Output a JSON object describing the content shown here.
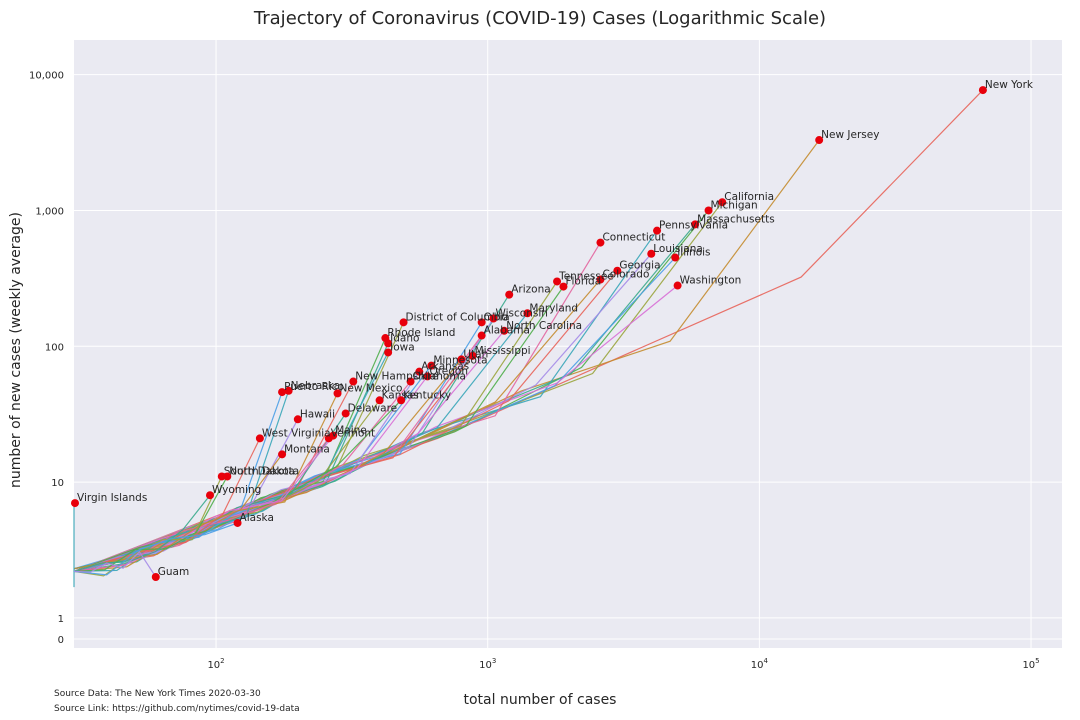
{
  "title": "Trajectory of Coronavirus (COVID-19) Cases (Logarithmic Scale)",
  "source_data": "Source Data: The New York Times 2020-03-30",
  "source_link": "Source Link: https://github.com/nytimes/covid-19-data",
  "chart_data": {
    "type": "line",
    "title": "Trajectory of Coronavirus (COVID-19) Cases (Logarithmic Scale)",
    "xlabel": "total number of cases",
    "ylabel": "number of new cases (weekly average)",
    "x_scale": "log",
    "y_scale": "log",
    "xlim": [
      30,
      130000
    ],
    "ylim": [
      0.6,
      18000
    ],
    "x_ticks": [
      {
        "value": 100,
        "label": "10",
        "exp": "2"
      },
      {
        "value": 1000,
        "label": "10",
        "exp": "3"
      },
      {
        "value": 10000,
        "label": "10",
        "exp": "4"
      },
      {
        "value": 100000,
        "label": "10",
        "exp": "5"
      }
    ],
    "y_ticks": [
      {
        "value": 1,
        "label": "1"
      },
      {
        "value": 10,
        "label": "10"
      },
      {
        "value": 100,
        "label": "100"
      },
      {
        "value": 1000,
        "label": "1,000"
      },
      {
        "value": 10000,
        "label": "10,000"
      }
    ],
    "y_zero_label": "0",
    "grid": true,
    "background": "#eaeaf2",
    "marker_color": "#e8000b",
    "palette": [
      "#e8645a",
      "#c48c2f",
      "#9aa53d",
      "#4fae4a",
      "#3aaa8c",
      "#39a6b8",
      "#4a9ee6",
      "#a58be8",
      "#d86fd6",
      "#e3659e"
    ],
    "points": [
      {
        "name": "New York",
        "x": 66500,
        "y": 7700
      },
      {
        "name": "New Jersey",
        "x": 16600,
        "y": 3300
      },
      {
        "name": "California",
        "x": 7300,
        "y": 1150
      },
      {
        "name": "Michigan",
        "x": 6500,
        "y": 1000
      },
      {
        "name": "Massachusetts",
        "x": 5800,
        "y": 790
      },
      {
        "name": "Pennsylvania",
        "x": 4200,
        "y": 710
      },
      {
        "name": "Illinois",
        "x": 4900,
        "y": 450
      },
      {
        "name": "Louisiana",
        "x": 4000,
        "y": 480
      },
      {
        "name": "Washington",
        "x": 5000,
        "y": 280
      },
      {
        "name": "Connecticut",
        "x": 2600,
        "y": 580
      },
      {
        "name": "Georgia",
        "x": 3000,
        "y": 360
      },
      {
        "name": "Colorado",
        "x": 2600,
        "y": 310
      },
      {
        "name": "Tennessee",
        "x": 1800,
        "y": 300
      },
      {
        "name": "Florida",
        "x": 1900,
        "y": 275
      },
      {
        "name": "Arizona",
        "x": 1200,
        "y": 240
      },
      {
        "name": "Maryland",
        "x": 1400,
        "y": 175
      },
      {
        "name": "Ohio",
        "x": 950,
        "y": 150
      },
      {
        "name": "Wisconsin",
        "x": 1050,
        "y": 160
      },
      {
        "name": "North Carolina",
        "x": 1150,
        "y": 130
      },
      {
        "name": "Alabama",
        "x": 950,
        "y": 120
      },
      {
        "name": "Mississippi",
        "x": 880,
        "y": 85
      },
      {
        "name": "Utah",
        "x": 800,
        "y": 80
      },
      {
        "name": "District of Columbia",
        "x": 490,
        "y": 150
      },
      {
        "name": "Rhode Island",
        "x": 420,
        "y": 115
      },
      {
        "name": "Idaho",
        "x": 430,
        "y": 105
      },
      {
        "name": "Iowa",
        "x": 430,
        "y": 90
      },
      {
        "name": "Minnesota",
        "x": 620,
        "y": 72
      },
      {
        "name": "Arkansas",
        "x": 560,
        "y": 65
      },
      {
        "name": "Oregon",
        "x": 600,
        "y": 60
      },
      {
        "name": "Oklahoma",
        "x": 520,
        "y": 55
      },
      {
        "name": "New Hampshire",
        "x": 320,
        "y": 55
      },
      {
        "name": "New Mexico",
        "x": 280,
        "y": 45
      },
      {
        "name": "Kansas",
        "x": 400,
        "y": 40
      },
      {
        "name": "Kentucky",
        "x": 480,
        "y": 40
      },
      {
        "name": "Delaware",
        "x": 300,
        "y": 32
      },
      {
        "name": "Nebraska",
        "x": 185,
        "y": 47
      },
      {
        "name": "Puerto Rico",
        "x": 175,
        "y": 46
      },
      {
        "name": "Hawaii",
        "x": 200,
        "y": 29
      },
      {
        "name": "Maine",
        "x": 270,
        "y": 22
      },
      {
        "name": "Vermont",
        "x": 260,
        "y": 21
      },
      {
        "name": "West Virginia",
        "x": 145,
        "y": 21
      },
      {
        "name": "Montana",
        "x": 175,
        "y": 16
      },
      {
        "name": "South Dakota",
        "x": 105,
        "y": 11
      },
      {
        "name": "North Dakota",
        "x": 110,
        "y": 11
      },
      {
        "name": "Wyoming",
        "x": 95,
        "y": 8
      },
      {
        "name": "Virgin Islands",
        "x": 30,
        "y": 7
      },
      {
        "name": "Alaska",
        "x": 120,
        "y": 5
      },
      {
        "name": "Guam",
        "x": 60,
        "y": 2
      }
    ]
  }
}
